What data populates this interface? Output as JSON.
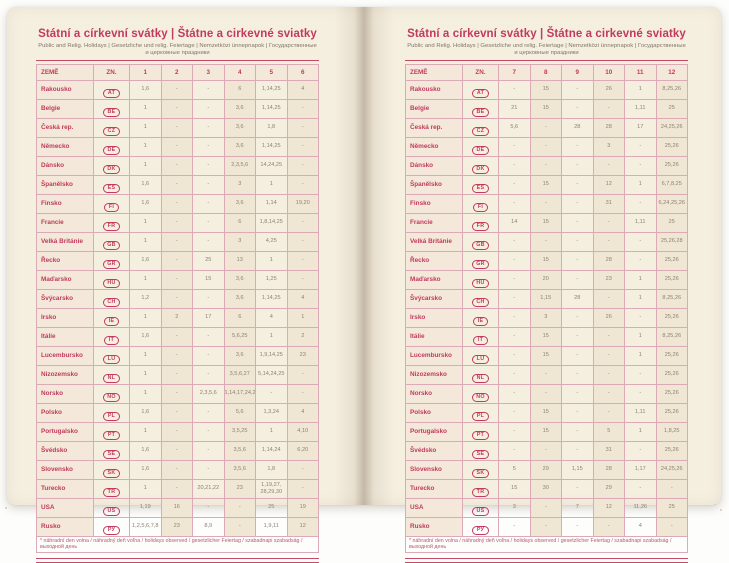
{
  "colors": {
    "accent": "#c23a5e",
    "rule": "#c44a68",
    "table_border": "#dcaab6",
    "page_background": "#f5efe0",
    "shaded_column": "#efe7d3",
    "country_column": "#f3e8d9",
    "number_text": "#8e8173",
    "subtitle_text": "#82756a"
  },
  "book": {
    "title": "Státní a církevní svátky | Štátne a cirkevné sviatky",
    "subtitle": "Public and Relig. Holidays | Gesetzliche und relig. Feiertage | Nemzetközi ünnepnapok | Государственные и церковные праздники",
    "footnote": "* náhradní den volna / náhradný deň voľna / holidays observed / gesetzlicher Feiertag / szabadnapi szabadság / выходной день",
    "col_country": "ZEMĚ",
    "col_code": "ZN."
  },
  "pages": [
    {
      "name": "left",
      "months": [
        "1",
        "2",
        "3",
        "4",
        "5",
        "6"
      ],
      "rows": [
        [
          "Rakousko",
          "AT",
          "1,6",
          "-",
          "-",
          "6",
          "1,14,25",
          "4"
        ],
        [
          "Belgie",
          "BE",
          "1",
          "-",
          "-",
          "3,6",
          "1,14,25",
          "-"
        ],
        [
          "Česká rep.",
          "CZ",
          "1",
          "-",
          "-",
          "3,6",
          "1,8",
          "-"
        ],
        [
          "Německo",
          "DE",
          "1",
          "-",
          "-",
          "3,6",
          "1,14,25",
          "-"
        ],
        [
          "Dánsko",
          "DK",
          "1",
          "-",
          "-",
          "2,3,5,6",
          "14,24,25",
          "-"
        ],
        [
          "Španělsko",
          "ES",
          "1,6",
          "-",
          "-",
          "3",
          "1",
          "-"
        ],
        [
          "Finsko",
          "FI",
          "1,6",
          "-",
          "-",
          "3,6",
          "1,14",
          "19,20"
        ],
        [
          "Francie",
          "FR",
          "1",
          "-",
          "-",
          "6",
          "1,8,14,25",
          "-"
        ],
        [
          "Velká Británie",
          "GB",
          "1",
          "-",
          "-",
          "3",
          "4,25",
          "-"
        ],
        [
          "Řecko",
          "GR",
          "1,6",
          "-",
          "25",
          "13",
          "1",
          "-"
        ],
        [
          "Maďarsko",
          "HU",
          "1",
          "-",
          "15",
          "3,6",
          "1,25",
          "-"
        ],
        [
          "Švýcarsko",
          "CH",
          "1,2",
          "-",
          "-",
          "3,6",
          "1,14,25",
          "4"
        ],
        [
          "Irsko",
          "IE",
          "1",
          "2",
          "17",
          "6",
          "4",
          "1"
        ],
        [
          "Itálie",
          "IT",
          "1,6",
          "-",
          "-",
          "5,6,25",
          "1",
          "2"
        ],
        [
          "Lucembursko",
          "LU",
          "1",
          "-",
          "-",
          "3,6",
          "1,9,14,25",
          "23"
        ],
        [
          "Nizozemsko",
          "NL",
          "1",
          "-",
          "-",
          "3,5,6,27",
          "5,14,24,25",
          "-"
        ],
        [
          "Norsko",
          "NO",
          "1",
          "-",
          "2,3,5,6",
          "1,14,17,24,25",
          "-",
          "-"
        ],
        [
          "Polsko",
          "PL",
          "1,6",
          "-",
          "-",
          "5,6",
          "1,3,24",
          "4"
        ],
        [
          "Portugalsko",
          "PT",
          "1",
          "-",
          "-",
          "3,5,25",
          "1",
          "4,10"
        ],
        [
          "Švédsko",
          "SE",
          "1,6",
          "-",
          "-",
          "3,5,6",
          "1,14,24",
          "6,20"
        ],
        [
          "Slovensko",
          "SK",
          "1,6",
          "-",
          "-",
          "3,5,6",
          "1,8",
          "-"
        ],
        [
          "Turecko",
          "TR",
          "1",
          "-",
          "20,21,22",
          "23",
          "1,19,27, 28,29,30",
          "-"
        ],
        [
          "USA",
          "US",
          "1,19",
          "16",
          "-",
          "-",
          "25",
          "19"
        ],
        [
          "Rusko",
          "РУ",
          "1,2,5,6,7,8",
          "23",
          "8,9",
          "-",
          "1,9,11",
          "12"
        ]
      ]
    },
    {
      "name": "right",
      "months": [
        "7",
        "8",
        "9",
        "10",
        "11",
        "12"
      ],
      "rows": [
        [
          "Rakousko",
          "AT",
          "-",
          "15",
          "-",
          "26",
          "1",
          "8,25,26"
        ],
        [
          "Belgie",
          "BE",
          "21",
          "15",
          "-",
          "-",
          "1,11",
          "25"
        ],
        [
          "Česká rep.",
          "CZ",
          "5,6",
          "-",
          "28",
          "28",
          "17",
          "24,25,26"
        ],
        [
          "Německo",
          "DE",
          "-",
          "-",
          "-",
          "3",
          "-",
          "25,26"
        ],
        [
          "Dánsko",
          "DK",
          "-",
          "-",
          "-",
          "-",
          "-",
          "25,26"
        ],
        [
          "Španělsko",
          "ES",
          "-",
          "15",
          "-",
          "12",
          "1",
          "6,7,8,25"
        ],
        [
          "Finsko",
          "FI",
          "-",
          "-",
          "-",
          "31",
          "-",
          "6,24,25,26"
        ],
        [
          "Francie",
          "FR",
          "14",
          "15",
          "-",
          "-",
          "1,11",
          "25"
        ],
        [
          "Velká Británie",
          "GB",
          "-",
          "-",
          "-",
          "-",
          "-",
          "25,26,28"
        ],
        [
          "Řecko",
          "GR",
          "-",
          "15",
          "-",
          "28",
          "-",
          "25,26"
        ],
        [
          "Maďarsko",
          "HU",
          "-",
          "20",
          "-",
          "23",
          "1",
          "25,26"
        ],
        [
          "Švýcarsko",
          "CH",
          "-",
          "1,15",
          "28",
          "-",
          "1",
          "8,25,26"
        ],
        [
          "Irsko",
          "IE",
          "-",
          "3",
          "-",
          "26",
          "-",
          "25,26"
        ],
        [
          "Itálie",
          "IT",
          "-",
          "15",
          "-",
          "-",
          "1",
          "8,25,26"
        ],
        [
          "Lucembursko",
          "LU",
          "-",
          "15",
          "-",
          "-",
          "1",
          "25,26"
        ],
        [
          "Nizozemsko",
          "NL",
          "-",
          "-",
          "-",
          "-",
          "-",
          "25,26"
        ],
        [
          "Norsko",
          "NO",
          "-",
          "-",
          "-",
          "-",
          "-",
          "25,26"
        ],
        [
          "Polsko",
          "PL",
          "-",
          "15",
          "-",
          "-",
          "1,11",
          "25,26"
        ],
        [
          "Portugalsko",
          "PT",
          "-",
          "15",
          "-",
          "5",
          "1",
          "1,8,25"
        ],
        [
          "Švédsko",
          "SE",
          "-",
          "-",
          "-",
          "31",
          "-",
          "25,26"
        ],
        [
          "Slovensko",
          "SK",
          "5",
          "29",
          "1,15",
          "28",
          "1,17",
          "24,25,26"
        ],
        [
          "Turecko",
          "TR",
          "15",
          "30",
          "-",
          "29",
          "-",
          "-"
        ],
        [
          "USA",
          "US",
          "3",
          "-",
          "7",
          "12",
          "11,26",
          "25"
        ],
        [
          "Rusko",
          "РУ",
          "-",
          "-",
          "-",
          "-",
          "4",
          "-"
        ]
      ]
    }
  ]
}
